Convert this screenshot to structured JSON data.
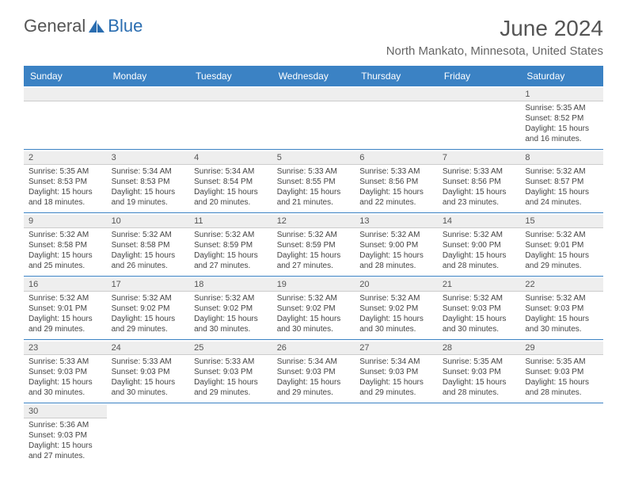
{
  "logo": {
    "text1": "General",
    "text2": "Blue"
  },
  "title": "June 2024",
  "location": "North Mankato, Minnesota, United States",
  "colors": {
    "header_bg": "#3b82c4",
    "header_text": "#ffffff",
    "daynum_bg": "#eeeeee",
    "border": "#3b82c4",
    "text": "#444444",
    "logo_blue": "#2a6db0"
  },
  "dayHeaders": [
    "Sunday",
    "Monday",
    "Tuesday",
    "Wednesday",
    "Thursday",
    "Friday",
    "Saturday"
  ],
  "weeks": [
    [
      null,
      null,
      null,
      null,
      null,
      null,
      {
        "d": "1",
        "sr": "5:35 AM",
        "ss": "8:52 PM",
        "dl": "15 hours and 16 minutes."
      }
    ],
    [
      {
        "d": "2",
        "sr": "5:35 AM",
        "ss": "8:53 PM",
        "dl": "15 hours and 18 minutes."
      },
      {
        "d": "3",
        "sr": "5:34 AM",
        "ss": "8:53 PM",
        "dl": "15 hours and 19 minutes."
      },
      {
        "d": "4",
        "sr": "5:34 AM",
        "ss": "8:54 PM",
        "dl": "15 hours and 20 minutes."
      },
      {
        "d": "5",
        "sr": "5:33 AM",
        "ss": "8:55 PM",
        "dl": "15 hours and 21 minutes."
      },
      {
        "d": "6",
        "sr": "5:33 AM",
        "ss": "8:56 PM",
        "dl": "15 hours and 22 minutes."
      },
      {
        "d": "7",
        "sr": "5:33 AM",
        "ss": "8:56 PM",
        "dl": "15 hours and 23 minutes."
      },
      {
        "d": "8",
        "sr": "5:32 AM",
        "ss": "8:57 PM",
        "dl": "15 hours and 24 minutes."
      }
    ],
    [
      {
        "d": "9",
        "sr": "5:32 AM",
        "ss": "8:58 PM",
        "dl": "15 hours and 25 minutes."
      },
      {
        "d": "10",
        "sr": "5:32 AM",
        "ss": "8:58 PM",
        "dl": "15 hours and 26 minutes."
      },
      {
        "d": "11",
        "sr": "5:32 AM",
        "ss": "8:59 PM",
        "dl": "15 hours and 27 minutes."
      },
      {
        "d": "12",
        "sr": "5:32 AM",
        "ss": "8:59 PM",
        "dl": "15 hours and 27 minutes."
      },
      {
        "d": "13",
        "sr": "5:32 AM",
        "ss": "9:00 PM",
        "dl": "15 hours and 28 minutes."
      },
      {
        "d": "14",
        "sr": "5:32 AM",
        "ss": "9:00 PM",
        "dl": "15 hours and 28 minutes."
      },
      {
        "d": "15",
        "sr": "5:32 AM",
        "ss": "9:01 PM",
        "dl": "15 hours and 29 minutes."
      }
    ],
    [
      {
        "d": "16",
        "sr": "5:32 AM",
        "ss": "9:01 PM",
        "dl": "15 hours and 29 minutes."
      },
      {
        "d": "17",
        "sr": "5:32 AM",
        "ss": "9:02 PM",
        "dl": "15 hours and 29 minutes."
      },
      {
        "d": "18",
        "sr": "5:32 AM",
        "ss": "9:02 PM",
        "dl": "15 hours and 30 minutes."
      },
      {
        "d": "19",
        "sr": "5:32 AM",
        "ss": "9:02 PM",
        "dl": "15 hours and 30 minutes."
      },
      {
        "d": "20",
        "sr": "5:32 AM",
        "ss": "9:02 PM",
        "dl": "15 hours and 30 minutes."
      },
      {
        "d": "21",
        "sr": "5:32 AM",
        "ss": "9:03 PM",
        "dl": "15 hours and 30 minutes."
      },
      {
        "d": "22",
        "sr": "5:32 AM",
        "ss": "9:03 PM",
        "dl": "15 hours and 30 minutes."
      }
    ],
    [
      {
        "d": "23",
        "sr": "5:33 AM",
        "ss": "9:03 PM",
        "dl": "15 hours and 30 minutes."
      },
      {
        "d": "24",
        "sr": "5:33 AM",
        "ss": "9:03 PM",
        "dl": "15 hours and 30 minutes."
      },
      {
        "d": "25",
        "sr": "5:33 AM",
        "ss": "9:03 PM",
        "dl": "15 hours and 29 minutes."
      },
      {
        "d": "26",
        "sr": "5:34 AM",
        "ss": "9:03 PM",
        "dl": "15 hours and 29 minutes."
      },
      {
        "d": "27",
        "sr": "5:34 AM",
        "ss": "9:03 PM",
        "dl": "15 hours and 29 minutes."
      },
      {
        "d": "28",
        "sr": "5:35 AM",
        "ss": "9:03 PM",
        "dl": "15 hours and 28 minutes."
      },
      {
        "d": "29",
        "sr": "5:35 AM",
        "ss": "9:03 PM",
        "dl": "15 hours and 28 minutes."
      }
    ],
    [
      {
        "d": "30",
        "sr": "5:36 AM",
        "ss": "9:03 PM",
        "dl": "15 hours and 27 minutes."
      },
      null,
      null,
      null,
      null,
      null,
      null
    ]
  ],
  "labels": {
    "sunrise": "Sunrise:",
    "sunset": "Sunset:",
    "daylight": "Daylight:"
  }
}
